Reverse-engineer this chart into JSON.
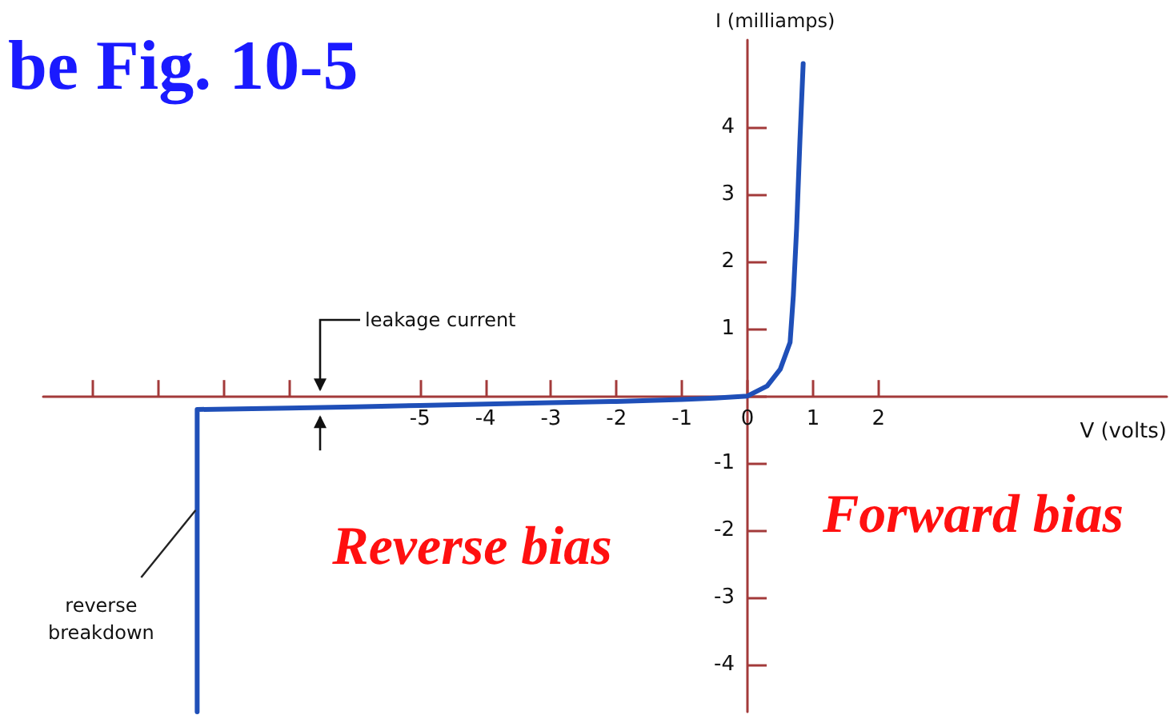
{
  "chart_data": {
    "type": "line",
    "title": "be Fig. 10-5",
    "xlabel": "V (volts)",
    "ylabel": "I (milliamps)",
    "x": [
      -8.4,
      -8.4,
      -7,
      -6,
      -5,
      -4,
      -3,
      -2,
      -1,
      -0.5,
      0,
      0.3,
      0.5,
      0.65,
      0.7,
      0.75,
      0.8,
      0.85
    ],
    "series": [
      {
        "color": "#1f4fb8",
        "values": [
          -4.7,
          -0.2,
          -0.18,
          -0.16,
          -0.14,
          -0.12,
          -0.1,
          -0.08,
          -0.05,
          -0.03,
          0,
          0.15,
          0.4,
          0.8,
          1.5,
          2.5,
          3.8,
          4.95
        ]
      }
    ],
    "xlim": [
      -10.75,
      6.4
    ],
    "ylim": [
      -4.7,
      5.3
    ],
    "xticks": [
      {
        "value": -10,
        "label": null
      },
      {
        "value": -9,
        "label": null
      },
      {
        "value": -8,
        "label": null
      },
      {
        "value": -7,
        "label": null
      },
      -5,
      -4,
      -3,
      -2,
      -1,
      0,
      1,
      2
    ],
    "yticks": [
      -4,
      -3,
      -2,
      -1,
      {
        "value": 0,
        "label": null
      },
      1,
      2,
      3,
      4
    ],
    "marker": "none",
    "line_style": "solid",
    "annotations": [
      "leakage current",
      {
        "text": "reverse\nbreakdown",
        "x": -8.4,
        "y": -1.7
      },
      "Reverse bias",
      "Forward bias"
    ]
  }
}
